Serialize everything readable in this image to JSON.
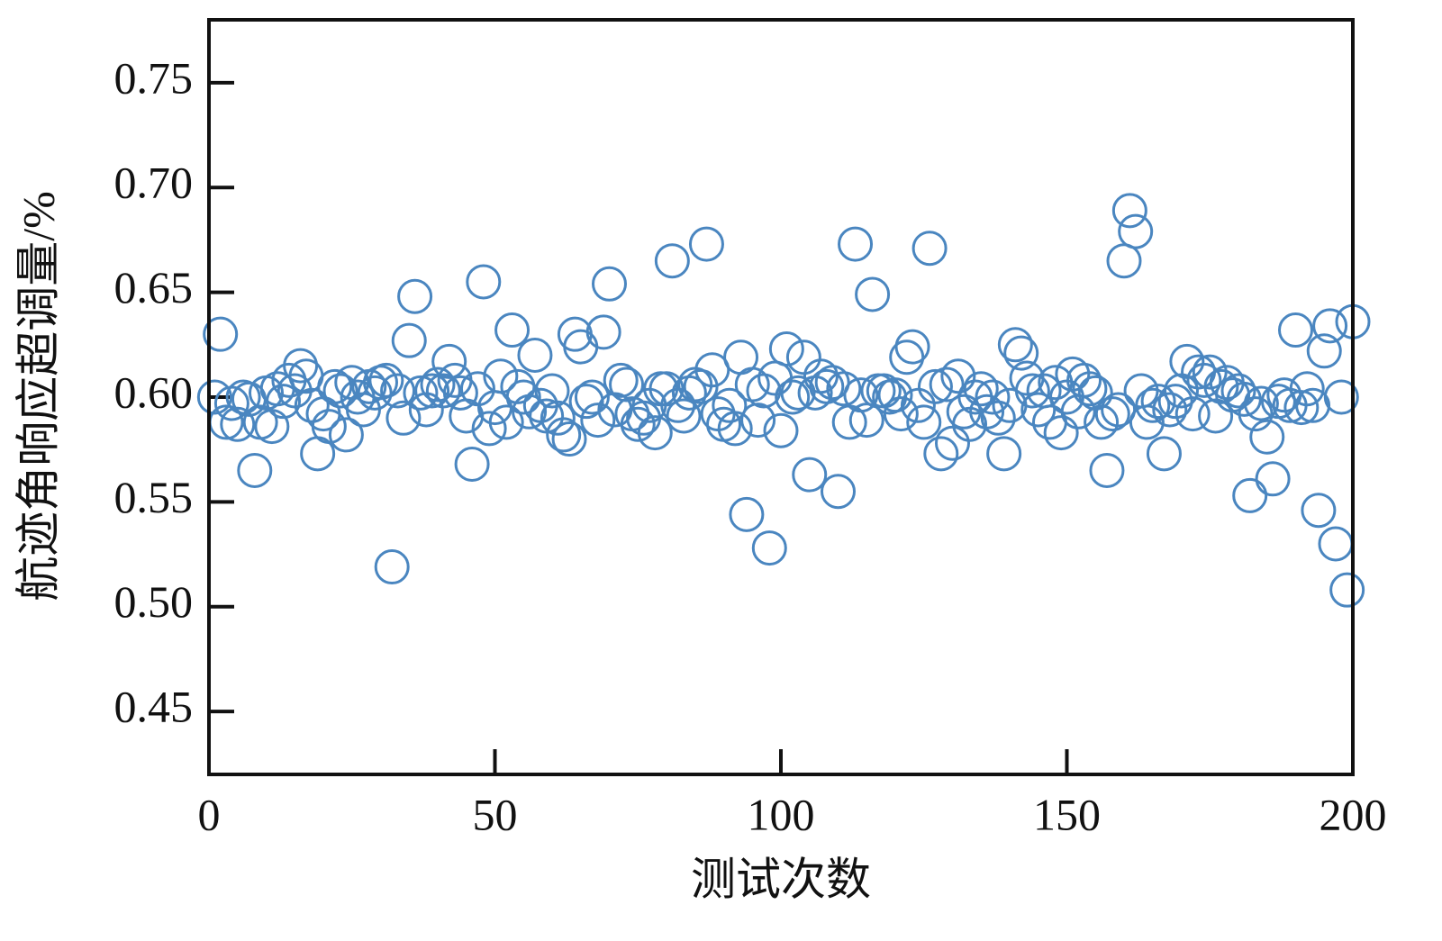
{
  "chart_data": {
    "type": "scatter",
    "x_label": "测试次数",
    "y_label": "航迹角响应超调量/%",
    "color": "#4a86c0",
    "xlim": [
      0,
      200
    ],
    "ylim": [
      0.42,
      0.78
    ],
    "xticks": [
      0,
      50,
      100,
      150,
      200
    ],
    "yticks": [
      0.45,
      {
        "value": 0.5,
        "label": "0.50"
      },
      0.55,
      {
        "value": 0.6,
        "label": "0.60"
      },
      0.65,
      {
        "value": 0.7,
        "label": "0.70"
      },
      0.75
    ],
    "x": [
      1,
      2,
      3,
      4,
      5,
      6,
      7,
      8,
      9,
      10,
      11,
      12,
      13,
      14,
      15,
      16,
      17,
      18,
      19,
      20,
      21,
      22,
      23,
      24,
      25,
      26,
      27,
      28,
      29,
      30,
      31,
      32,
      33,
      34,
      35,
      36,
      37,
      38,
      39,
      40,
      41,
      42,
      43,
      44,
      45,
      46,
      47,
      48,
      49,
      50,
      51,
      52,
      53,
      54,
      55,
      56,
      57,
      58,
      59,
      60,
      61,
      62,
      63,
      64,
      65,
      66,
      67,
      68,
      69,
      70,
      71,
      72,
      73,
      74,
      75,
      76,
      77,
      78,
      79,
      80,
      81,
      82,
      83,
      84,
      85,
      86,
      87,
      88,
      89,
      90,
      91,
      92,
      93,
      94,
      95,
      96,
      97,
      98,
      99,
      100,
      101,
      102,
      103,
      104,
      105,
      106,
      107,
      108,
      109,
      110,
      111,
      112,
      113,
      114,
      115,
      116,
      117,
      118,
      119,
      120,
      121,
      122,
      123,
      124,
      125,
      126,
      127,
      128,
      129,
      130,
      131,
      132,
      133,
      134,
      135,
      136,
      137,
      138,
      139,
      140,
      141,
      142,
      143,
      144,
      145,
      146,
      147,
      148,
      149,
      150,
      151,
      152,
      153,
      154,
      155,
      156,
      157,
      158,
      159,
      160,
      161,
      162,
      163,
      164,
      165,
      166,
      167,
      168,
      169,
      170,
      171,
      172,
      173,
      174,
      175,
      176,
      177,
      178,
      179,
      180,
      181,
      182,
      183,
      184,
      185,
      186,
      187,
      188,
      189,
      190,
      191,
      192,
      193,
      194,
      195,
      196,
      197,
      198,
      199,
      200
    ],
    "values": [
      0.6,
      0.63,
      0.588,
      0.597,
      0.587,
      0.6,
      0.599,
      0.565,
      0.588,
      0.602,
      0.586,
      0.604,
      0.598,
      0.608,
      0.603,
      0.615,
      0.61,
      0.596,
      0.573,
      0.592,
      0.586,
      0.605,
      0.603,
      0.582,
      0.607,
      0.6,
      0.594,
      0.605,
      0.602,
      0.607,
      0.608,
      0.519,
      0.603,
      0.59,
      0.627,
      0.648,
      0.602,
      0.594,
      0.603,
      0.606,
      0.603,
      0.617,
      0.608,
      0.602,
      0.591,
      0.568,
      0.604,
      0.655,
      0.585,
      0.595,
      0.61,
      0.588,
      0.632,
      0.605,
      0.6,
      0.593,
      0.62,
      0.596,
      0.591,
      0.603,
      0.59,
      0.582,
      0.58,
      0.63,
      0.624,
      0.598,
      0.6,
      0.589,
      0.631,
      0.654,
      0.594,
      0.608,
      0.606,
      0.592,
      0.587,
      0.59,
      0.596,
      0.583,
      0.604,
      0.604,
      0.665,
      0.596,
      0.591,
      0.602,
      0.606,
      0.605,
      0.673,
      0.613,
      0.592,
      0.587,
      0.596,
      0.585,
      0.619,
      0.544,
      0.606,
      0.589,
      0.603,
      0.528,
      0.609,
      0.584,
      0.623,
      0.6,
      0.602,
      0.619,
      0.563,
      0.602,
      0.61,
      0.605,
      0.607,
      0.555,
      0.604,
      0.588,
      0.673,
      0.601,
      0.589,
      0.649,
      0.603,
      0.603,
      0.6,
      0.601,
      0.592,
      0.619,
      0.624,
      0.596,
      0.588,
      0.671,
      0.605,
      0.573,
      0.606,
      0.578,
      0.61,
      0.593,
      0.587,
      0.6,
      0.604,
      0.593,
      0.6,
      0.59,
      0.573,
      0.596,
      0.625,
      0.621,
      0.609,
      0.603,
      0.594,
      0.603,
      0.588,
      0.607,
      0.583,
      0.6,
      0.611,
      0.593,
      0.608,
      0.604,
      0.602,
      0.588,
      0.565,
      0.592,
      0.594,
      0.665,
      0.689,
      0.679,
      0.603,
      0.588,
      0.596,
      0.598,
      0.573,
      0.594,
      0.598,
      0.603,
      0.617,
      0.592,
      0.612,
      0.608,
      0.612,
      0.591,
      0.605,
      0.607,
      0.601,
      0.603,
      0.599,
      0.553,
      0.592,
      0.597,
      0.581,
      0.561,
      0.598,
      0.601,
      0.596,
      0.632,
      0.595,
      0.604,
      0.596,
      0.546,
      0.622,
      0.634,
      0.53,
      0.6,
      0.508,
      0.636
    ]
  }
}
